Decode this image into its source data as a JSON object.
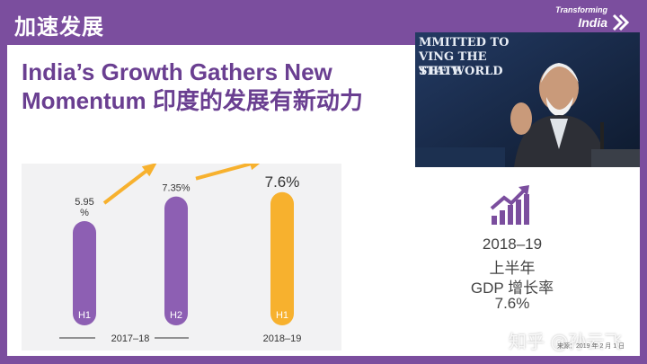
{
  "header": {
    "title": "加速发展",
    "logo_top": "Transforming",
    "logo_main": "India"
  },
  "headline": {
    "line1": "India’s Growth Gathers New",
    "line2": "Momentum 印度的发展有新动力"
  },
  "photo": {
    "caption_lines": [
      "MMITTED TO",
      "VING THE STATE",
      "THE WORLD"
    ]
  },
  "chart_data": {
    "type": "bar",
    "categories": [
      "H1",
      "H2",
      "H1"
    ],
    "values": [
      5.95,
      7.35,
      7.6
    ],
    "value_labels": [
      "5.95\n%",
      "7.35%",
      "7.6%"
    ],
    "groups": [
      {
        "label": "2017–18",
        "categories": [
          0,
          1
        ]
      },
      {
        "label": "2018–19",
        "categories": [
          2
        ]
      }
    ],
    "colors": [
      "#8d5fb3",
      "#8d5fb3",
      "#f7b12e"
    ],
    "arrow_color": "#f7b12e",
    "ylim": [
      0,
      8
    ],
    "grid": false,
    "title": "",
    "xlabel": "",
    "ylabel": ""
  },
  "gdp_box": {
    "icon": "bar-growth-icon",
    "accent": "#7b4e9e",
    "lines": [
      "2018–19",
      "上半年",
      "GDP 增长率",
      "7.6%"
    ]
  },
  "watermark": "知乎 @孙云飞",
  "source_note": "来源：2019 年 2 月 1 日"
}
